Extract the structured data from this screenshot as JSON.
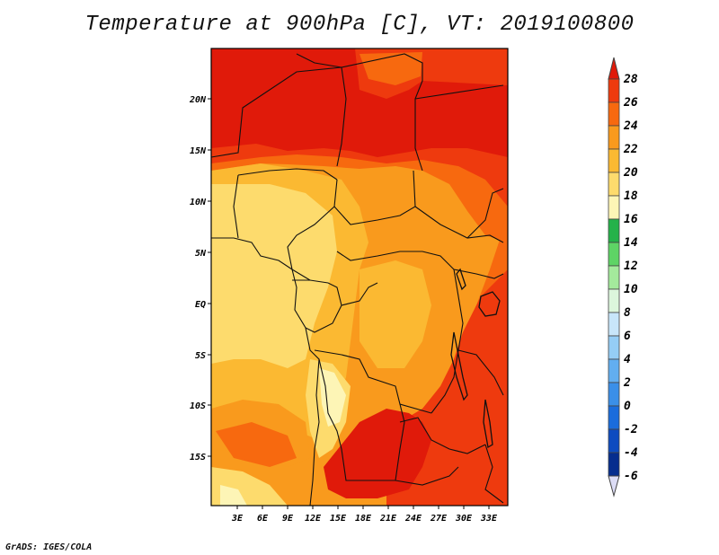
{
  "title": "Temperature at 900hPa [C], VT: 2019100800",
  "credit": "GrADS: IGES/COLA",
  "map": {
    "region": "Central and Southern Africa",
    "lat_labels": [
      "20N",
      "15N",
      "10N",
      "5N",
      "EQ",
      "5S",
      "10S",
      "15S"
    ],
    "lon_labels": [
      "3E",
      "6E",
      "9E",
      "12E",
      "15E",
      "18E",
      "21E",
      "24E",
      "27E",
      "30E",
      "33E"
    ]
  },
  "colorbar": {
    "labels": [
      "28",
      "26",
      "24",
      "22",
      "20",
      "18",
      "16",
      "14",
      "12",
      "10",
      "8",
      "6",
      "4",
      "2",
      "0",
      "-2",
      "-4",
      "-6"
    ],
    "colors": [
      "#e01a0a",
      "#ee3a0e",
      "#f7690f",
      "#f99a1d",
      "#fbb932",
      "#fddb6d",
      "#fdf5b6",
      "#25b24a",
      "#5ed465",
      "#a4ea9c",
      "#dcf6dc",
      "#c8e6fa",
      "#95cdf5",
      "#62aef0",
      "#3a8fe8",
      "#1a6cdc",
      "#0d4bc0",
      "#062d8e",
      "#000a5a"
    ]
  },
  "field_colors": {
    "t28": "#e01a0a",
    "t26": "#ee3a0e",
    "t24": "#f7690f",
    "t22": "#f99a1d",
    "t20": "#fbb932",
    "t18": "#fddb6d",
    "t16": "#fdf5b6"
  }
}
